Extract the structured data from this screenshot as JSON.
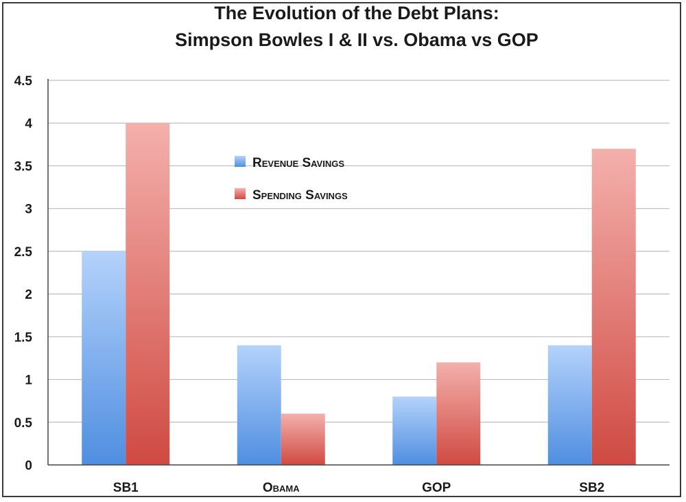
{
  "chart_data": {
    "type": "bar",
    "title_lines": [
      "The Evolution of the Debt Plans:",
      "Simpson Bowles I & II vs. Obama vs GOP"
    ],
    "categories": [
      "SB1",
      "Obama",
      "GOP",
      "SB2"
    ],
    "series": [
      {
        "name": "Revenue Savings",
        "values": [
          2.5,
          1.4,
          0.8,
          1.4
        ]
      },
      {
        "name": "Spending Savings",
        "values": [
          4.0,
          0.6,
          1.2,
          3.7
        ]
      }
    ],
    "xlabel": "",
    "ylabel": "",
    "ylim": [
      0,
      4.5
    ],
    "yticks": [
      "0",
      "0.5",
      "1",
      "1.5",
      "2",
      "2.5",
      "3",
      "3.5",
      "4",
      "4.5"
    ],
    "grid": true,
    "legend_position": "upper-center"
  },
  "colors": {
    "revenue_top": "#b4d2fb",
    "revenue_bottom": "#4f8ee0",
    "spending_top": "#f4b0ac",
    "spending_bottom": "#cf4a42",
    "grid": "#bdbdbd",
    "axis": "#444444"
  }
}
